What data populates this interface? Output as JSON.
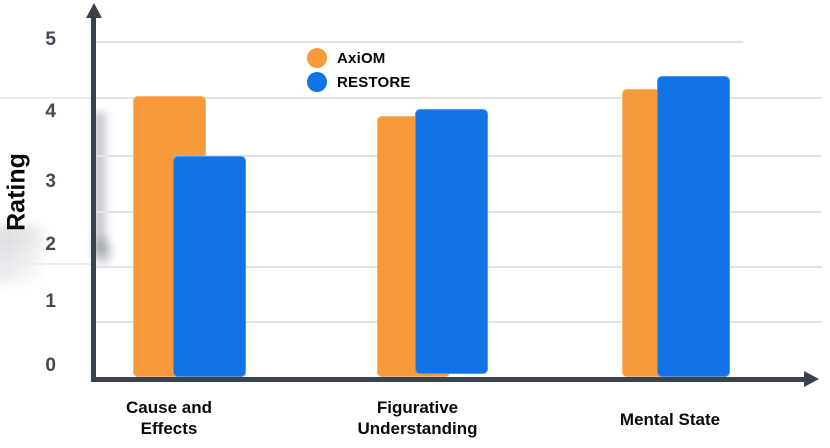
{
  "chart_data": {
    "type": "bar",
    "title": "",
    "ylabel": "Rating",
    "xlabel": "",
    "categories": [
      "Cause and Effects",
      "Figurative Understanding",
      "Mental State"
    ],
    "category_display_lines": [
      [
        "Cause and",
        "Effects"
      ],
      [
        "Figurative",
        "Understanding"
      ],
      [
        "Mental State"
      ]
    ],
    "series": [
      {
        "name": "AxiOM",
        "color": "#F8993B",
        "values": [
          4.2,
          3.9,
          4.3
        ]
      },
      {
        "name": "RESTORE",
        "color": "#1273E6",
        "values": [
          3.3,
          4.0,
          4.5
        ]
      }
    ],
    "ylim": [
      0,
      5
    ],
    "y_tick_labels": [
      "5",
      "4",
      "3",
      "2",
      "1",
      "0"
    ],
    "grid": true,
    "legend_position": "top-center"
  },
  "legend": {
    "items": [
      {
        "label": "AxiOM",
        "color": "#F8993B"
      },
      {
        "label": "RESTORE",
        "color": "#1273E6"
      }
    ]
  },
  "colors": {
    "axiom_orange": "#F8993B",
    "restore_blue": "#1273E6",
    "axis": "#3A434D",
    "gridline": "#DFE3EA",
    "tick_text": "#3F4A54",
    "category_text": "#0A0A0A",
    "background": "#FFFFFF"
  }
}
